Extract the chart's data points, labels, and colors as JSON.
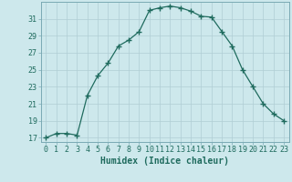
{
  "x": [
    0,
    1,
    2,
    3,
    4,
    5,
    6,
    7,
    8,
    9,
    10,
    11,
    12,
    13,
    14,
    15,
    16,
    17,
    18,
    19,
    20,
    21,
    22,
    23
  ],
  "y": [
    17.0,
    17.5,
    17.5,
    17.3,
    22.0,
    24.3,
    25.8,
    27.8,
    28.5,
    29.5,
    32.0,
    32.3,
    32.5,
    32.3,
    31.9,
    31.3,
    31.2,
    29.5,
    27.8,
    25.0,
    23.0,
    21.0,
    19.8,
    19.0
  ],
  "line_color": "#1f6b5e",
  "marker": "+",
  "marker_size": 4,
  "bg_color": "#cde8ec",
  "grid_color": "#b0cdd4",
  "xlabel": "Humidex (Indice chaleur)",
  "xlabel_fontsize": 7,
  "xlim": [
    -0.5,
    23.5
  ],
  "ylim": [
    16.5,
    33.0
  ],
  "yticks": [
    17,
    19,
    21,
    23,
    25,
    27,
    29,
    31
  ],
  "xticks": [
    0,
    1,
    2,
    3,
    4,
    5,
    6,
    7,
    8,
    9,
    10,
    11,
    12,
    13,
    14,
    15,
    16,
    17,
    18,
    19,
    20,
    21,
    22,
    23
  ],
  "tick_fontsize": 6,
  "text_color": "#1f6b5e",
  "spine_color": "#7aaab4"
}
